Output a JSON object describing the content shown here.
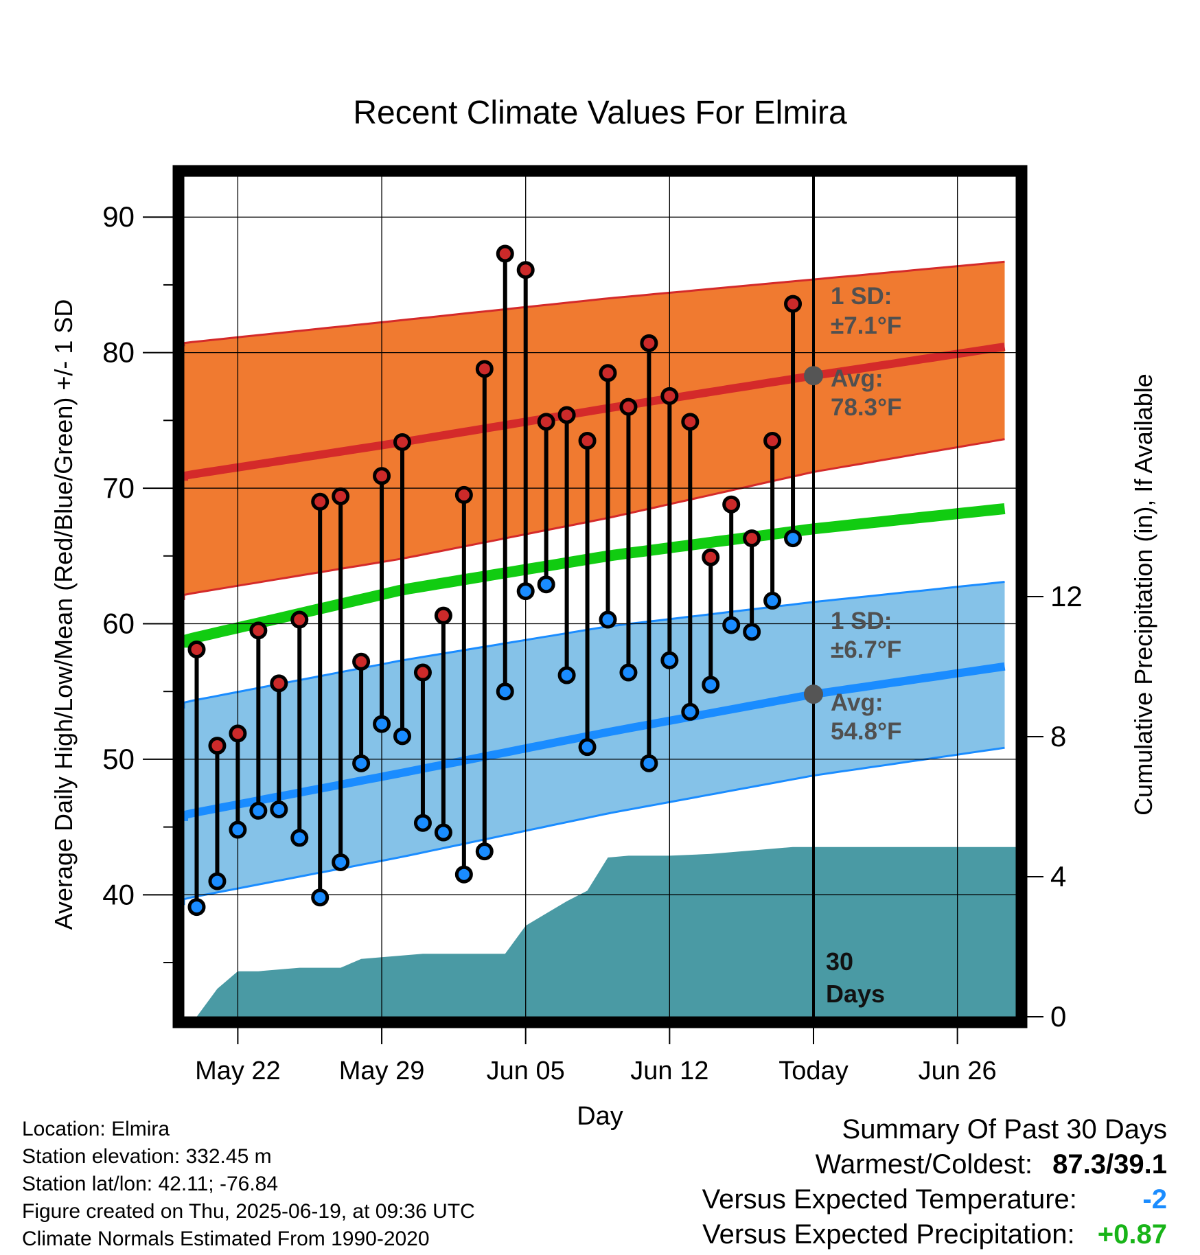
{
  "chart_data": {
    "type": "line",
    "title": "Recent Climate Values For Elmira",
    "xlabel": "Day",
    "ylabel": "Average Daily High/Low/Mean (Red/Blue/Green) +/- 1 SD",
    "y2label": "Cumulative Precipitation (in), If Available",
    "x_tick_labels": [
      "May 22",
      "May 29",
      "Jun 05",
      "Jun 12",
      "Today",
      "Jun 26"
    ],
    "y_ticks": [
      40,
      50,
      60,
      70,
      80,
      90
    ],
    "y2_ticks": [
      0,
      4,
      8,
      12
    ],
    "ylim": [
      31,
      93
    ],
    "y2lim": [
      0,
      24
    ],
    "x_range_days": [
      -32.2,
      9.7
    ],
    "days_before_today": [
      -30,
      -29,
      -28,
      -27,
      -26,
      -25,
      -24,
      -23,
      -22,
      -21,
      -20,
      -19,
      -18,
      -17,
      -16,
      -15,
      -14,
      -13,
      -12,
      -11,
      -10,
      -9,
      -8,
      -7,
      -6,
      -5,
      -4,
      -3,
      -2,
      -1
    ],
    "daily_high": [
      58.1,
      51.0,
      51.9,
      59.5,
      55.6,
      60.3,
      69.0,
      69.4,
      57.2,
      70.9,
      73.4,
      56.4,
      60.6,
      69.5,
      78.8,
      87.3,
      86.1,
      74.9,
      75.4,
      73.5,
      78.5,
      76.0,
      80.7,
      76.8,
      74.9,
      64.9,
      68.8,
      66.3,
      73.5,
      83.6
    ],
    "daily_low": [
      39.1,
      41.0,
      44.8,
      46.2,
      46.3,
      44.2,
      39.8,
      42.4,
      49.7,
      52.6,
      51.7,
      45.3,
      44.6,
      41.5,
      43.2,
      55.0,
      62.4,
      62.9,
      56.2,
      50.9,
      60.3,
      56.4,
      49.7,
      57.3,
      53.5,
      55.5,
      59.9,
      59.4,
      61.7,
      66.3
    ],
    "normal_high": {
      "x": [
        -32,
        -20,
        -10,
        0,
        10
      ],
      "y": [
        70.6,
        73.4,
        75.9,
        78.3,
        80.6
      ]
    },
    "normal_high_sd_band": {
      "upper": [
        80.5,
        82.4,
        84.0,
        85.4,
        86.8
      ],
      "lower": [
        61.8,
        64.8,
        67.8,
        71.2,
        73.8
      ]
    },
    "normal_low": {
      "x": [
        -32,
        -20,
        -10,
        0,
        10
      ],
      "y": [
        45.5,
        49.0,
        52.0,
        54.8,
        57.0
      ]
    },
    "normal_low_sd_band": {
      "upper": [
        53.8,
        57.3,
        59.8,
        61.6,
        63.2
      ],
      "lower": [
        39.3,
        42.8,
        46.0,
        48.8,
        51.0
      ]
    },
    "normal_mean": {
      "x": [
        -32,
        -20,
        -10,
        0,
        10
      ],
      "y": [
        58.3,
        62.5,
        65.0,
        67.0,
        68.6
      ]
    },
    "cumulative_precip": {
      "x": [
        -30,
        -29,
        -28,
        -27,
        -25,
        -24,
        -23,
        -22,
        -21,
        -19,
        -17,
        -16,
        -15,
        -14,
        -13,
        -12,
        -11,
        -10,
        -9,
        -7,
        -5,
        -3,
        -1,
        0,
        10
      ],
      "y": [
        0.0,
        0.8,
        1.3,
        1.3,
        1.4,
        1.4,
        1.4,
        1.65,
        1.7,
        1.8,
        1.8,
        1.8,
        1.8,
        2.6,
        2.95,
        3.3,
        3.6,
        4.55,
        4.6,
        4.6,
        4.65,
        4.75,
        4.85,
        4.85,
        4.85
      ]
    },
    "legend": "none",
    "grid": true
  },
  "annotations": {
    "high_sd_title": "1 SD:",
    "high_sd_value": "±7.1°F",
    "high_avg_title": "Avg:",
    "high_avg_value": "78.3°F",
    "low_sd_title": "1 SD:",
    "low_sd_value": "±6.7°F",
    "low_avg_title": "Avg:",
    "low_avg_value": "54.8°F",
    "days_number": "30",
    "days_word": "Days"
  },
  "station_info": [
    "Location: Elmira",
    "Station elevation: 332.45 m",
    "Station lat/lon: 42.11; -76.84",
    "Figure created on Thu, 2025-06-19, at 09:36 UTC",
    "Climate Normals Estimated From 1990-2020"
  ],
  "summary": {
    "title": "Summary Of Past 30 Days",
    "warmest_label": "Warmest/Coldest:",
    "warmest_value": "87.3/39.1",
    "temp_label": "Versus Expected Temperature:",
    "temp_value": "-2",
    "precip_label": "Versus Expected Precipitation:",
    "precip_value": "+0.87"
  },
  "colors": {
    "high_marker": "#cc2a2a",
    "low_marker": "#1a8cff",
    "high_band": "#f07a30",
    "low_band": "#85c2e8",
    "mean_line": "#11cc11",
    "precip_fill": "#4a9aa4",
    "annotation_text": "#505050",
    "temp_value_color": "#1a8cff",
    "precip_value_color": "#18b418"
  }
}
